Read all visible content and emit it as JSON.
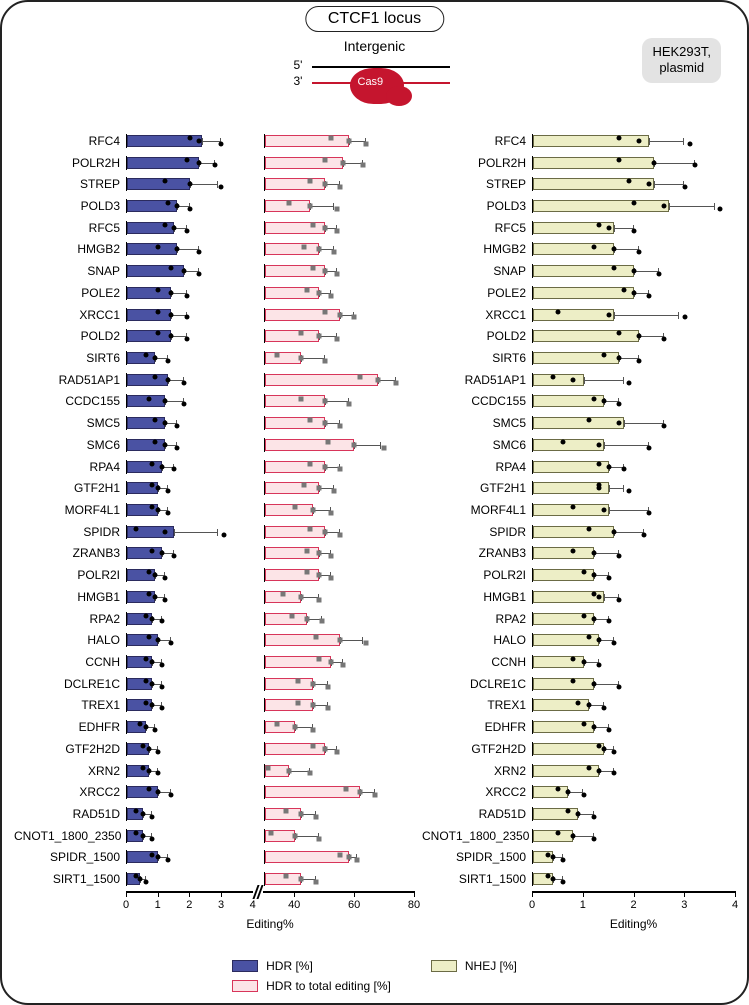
{
  "title": "CTCF1 locus",
  "subtitle": "Intergenic",
  "context": "HEK293T,\nplasmid",
  "cas9": {
    "label5": "5'",
    "label3": "3'",
    "blob": "Cas9"
  },
  "axis": {
    "left_title": "Editing%",
    "right_title": "Editing%",
    "hdr_max": 4,
    "hdr_ticks": [
      0,
      1,
      2,
      3,
      4
    ],
    "ratio_min": 30,
    "ratio_max": 80,
    "ratio_ticks": [
      40,
      60,
      80
    ],
    "nhej_max": 4,
    "nhej_ticks": [
      0,
      1,
      2,
      3,
      4
    ]
  },
  "legend": {
    "hdr": "HDR [%]",
    "ratio": "HDR to total editing [%]",
    "nhej": "NHEJ [%]"
  },
  "colors": {
    "hdr_fill": "#4a52a3",
    "hdr_stroke": "#2b2b5e",
    "ratio_fill": "#fce4e7",
    "ratio_stroke": "#d8355a",
    "nhej_fill": "#edeec6",
    "nhej_stroke": "#6b6b45",
    "cas9": "#c5152e",
    "panel_border": "#222222",
    "badge_bg": "#e3e3e3"
  },
  "genes": [
    {
      "name": "RFC4",
      "hdr": 2.4,
      "hdr_err": 0.6,
      "hdr_pts": [
        2.0,
        2.3,
        3.0
      ],
      "ratio": 58,
      "ratio_err": 6,
      "ratio_pts": [
        52,
        58,
        64
      ],
      "nhej": 2.3,
      "nhej_err": 0.7,
      "nhej_pts": [
        1.7,
        2.1,
        3.1
      ]
    },
    {
      "name": "POLR2H",
      "hdr": 2.3,
      "hdr_err": 0.5,
      "hdr_pts": [
        1.9,
        2.3,
        2.8
      ],
      "ratio": 56,
      "ratio_err": 7,
      "ratio_pts": [
        50,
        56,
        63
      ],
      "nhej": 2.4,
      "nhej_err": 0.8,
      "nhej_pts": [
        1.7,
        2.4,
        3.2
      ]
    },
    {
      "name": "STREP",
      "hdr": 2.0,
      "hdr_err": 0.9,
      "hdr_pts": [
        1.2,
        2.0,
        3.0
      ],
      "ratio": 50,
      "ratio_err": 5,
      "ratio_pts": [
        45,
        50,
        55
      ],
      "nhej": 2.4,
      "nhej_err": 0.6,
      "nhej_pts": [
        1.9,
        2.3,
        3.0
      ]
    },
    {
      "name": "POLD3",
      "hdr": 1.6,
      "hdr_err": 0.4,
      "hdr_pts": [
        1.3,
        1.6,
        2.0
      ],
      "ratio": 45,
      "ratio_err": 8,
      "ratio_pts": [
        38,
        45,
        54
      ],
      "nhej": 2.7,
      "nhej_err": 0.9,
      "nhej_pts": [
        2.0,
        2.6,
        3.7
      ]
    },
    {
      "name": "RFC5",
      "hdr": 1.5,
      "hdr_err": 0.4,
      "hdr_pts": [
        1.2,
        1.5,
        1.9
      ],
      "ratio": 50,
      "ratio_err": 4,
      "ratio_pts": [
        46,
        50,
        54
      ],
      "nhej": 1.6,
      "nhej_err": 0.4,
      "nhej_pts": [
        1.3,
        1.5,
        2.0
      ]
    },
    {
      "name": "HMGB2",
      "hdr": 1.6,
      "hdr_err": 0.7,
      "hdr_pts": [
        1.0,
        1.6,
        2.3
      ],
      "ratio": 48,
      "ratio_err": 5,
      "ratio_pts": [
        43,
        48,
        53
      ],
      "nhej": 1.6,
      "nhej_err": 0.5,
      "nhej_pts": [
        1.2,
        1.6,
        2.1
      ]
    },
    {
      "name": "SNAP",
      "hdr": 1.8,
      "hdr_err": 0.5,
      "hdr_pts": [
        1.4,
        1.8,
        2.3
      ],
      "ratio": 50,
      "ratio_err": 4,
      "ratio_pts": [
        46,
        50,
        54
      ],
      "nhej": 2.0,
      "nhej_err": 0.5,
      "nhej_pts": [
        1.6,
        2.0,
        2.5
      ]
    },
    {
      "name": "POLE2",
      "hdr": 1.4,
      "hdr_err": 0.5,
      "hdr_pts": [
        1.0,
        1.4,
        1.9
      ],
      "ratio": 48,
      "ratio_err": 4,
      "ratio_pts": [
        44,
        48,
        52
      ],
      "nhej": 2.0,
      "nhej_err": 0.3,
      "nhej_pts": [
        1.8,
        2.0,
        2.3
      ]
    },
    {
      "name": "XRCC1",
      "hdr": 1.4,
      "hdr_err": 0.5,
      "hdr_pts": [
        1.0,
        1.4,
        1.9
      ],
      "ratio": 55,
      "ratio_err": 5,
      "ratio_pts": [
        50,
        55,
        60
      ],
      "nhej": 1.6,
      "nhej_err": 1.3,
      "nhej_pts": [
        0.5,
        1.5,
        3.0
      ]
    },
    {
      "name": "POLD2",
      "hdr": 1.4,
      "hdr_err": 0.5,
      "hdr_pts": [
        1.0,
        1.4,
        1.9
      ],
      "ratio": 48,
      "ratio_err": 6,
      "ratio_pts": [
        42,
        48,
        54
      ],
      "nhej": 2.1,
      "nhej_err": 0.5,
      "nhej_pts": [
        1.7,
        2.1,
        2.6
      ]
    },
    {
      "name": "SIRT6",
      "hdr": 0.9,
      "hdr_err": 0.4,
      "hdr_pts": [
        0.6,
        0.9,
        1.3
      ],
      "ratio": 42,
      "ratio_err": 8,
      "ratio_pts": [
        34,
        42,
        50
      ],
      "nhej": 1.7,
      "nhej_err": 0.4,
      "nhej_pts": [
        1.4,
        1.7,
        2.1
      ]
    },
    {
      "name": "RAD51AP1",
      "hdr": 1.3,
      "hdr_err": 0.5,
      "hdr_pts": [
        0.9,
        1.3,
        1.8
      ],
      "ratio": 68,
      "ratio_err": 6,
      "ratio_pts": [
        62,
        68,
        74
      ],
      "nhej": 1.0,
      "nhej_err": 0.8,
      "nhej_pts": [
        0.4,
        0.8,
        1.9
      ]
    },
    {
      "name": "CCDC155",
      "hdr": 1.2,
      "hdr_err": 0.6,
      "hdr_pts": [
        0.7,
        1.2,
        1.8
      ],
      "ratio": 50,
      "ratio_err": 8,
      "ratio_pts": [
        42,
        50,
        58
      ],
      "nhej": 1.4,
      "nhej_err": 0.3,
      "nhej_pts": [
        1.2,
        1.4,
        1.7
      ]
    },
    {
      "name": "SMC5",
      "hdr": 1.2,
      "hdr_err": 0.4,
      "hdr_pts": [
        0.9,
        1.2,
        1.6
      ],
      "ratio": 50,
      "ratio_err": 5,
      "ratio_pts": [
        45,
        50,
        55
      ],
      "nhej": 1.8,
      "nhej_err": 0.8,
      "nhej_pts": [
        1.1,
        1.7,
        2.6
      ]
    },
    {
      "name": "SMC6",
      "hdr": 1.2,
      "hdr_err": 0.4,
      "hdr_pts": [
        0.9,
        1.2,
        1.6
      ],
      "ratio": 60,
      "ratio_err": 9,
      "ratio_pts": [
        51,
        60,
        70
      ],
      "nhej": 1.4,
      "nhej_err": 0.9,
      "nhej_pts": [
        0.6,
        1.3,
        2.3
      ]
    },
    {
      "name": "RPA4",
      "hdr": 1.1,
      "hdr_err": 0.4,
      "hdr_pts": [
        0.8,
        1.1,
        1.5
      ],
      "ratio": 50,
      "ratio_err": 5,
      "ratio_pts": [
        45,
        50,
        55
      ],
      "nhej": 1.5,
      "nhej_err": 0.3,
      "nhej_pts": [
        1.3,
        1.5,
        1.8
      ]
    },
    {
      "name": "GTF2H1",
      "hdr": 1.0,
      "hdr_err": 0.3,
      "hdr_pts": [
        0.8,
        1.0,
        1.3
      ],
      "ratio": 48,
      "ratio_err": 5,
      "ratio_pts": [
        43,
        48,
        53
      ],
      "nhej": 1.5,
      "nhej_err": 0.3,
      "nhej_pts": [
        1.3,
        1.3,
        1.9
      ]
    },
    {
      "name": "MORF4L1",
      "hdr": 1.0,
      "hdr_err": 0.3,
      "hdr_pts": [
        0.8,
        1.0,
        1.3
      ],
      "ratio": 46,
      "ratio_err": 6,
      "ratio_pts": [
        40,
        46,
        52
      ],
      "nhej": 1.5,
      "nhej_err": 0.8,
      "nhej_pts": [
        0.8,
        1.4,
        2.3
      ]
    },
    {
      "name": "SPIDR",
      "hdr": 1.5,
      "hdr_err": 1.4,
      "hdr_pts": [
        0.3,
        1.2,
        3.1
      ],
      "ratio": 50,
      "ratio_err": 5,
      "ratio_pts": [
        45,
        50,
        55
      ],
      "nhej": 1.6,
      "nhej_err": 0.6,
      "nhej_pts": [
        1.1,
        1.6,
        2.2
      ]
    },
    {
      "name": "ZRANB3",
      "hdr": 1.1,
      "hdr_err": 0.4,
      "hdr_pts": [
        0.8,
        1.1,
        1.5
      ],
      "ratio": 48,
      "ratio_err": 4,
      "ratio_pts": [
        44,
        48,
        52
      ],
      "nhej": 1.2,
      "nhej_err": 0.5,
      "nhej_pts": [
        0.8,
        1.2,
        1.7
      ]
    },
    {
      "name": "POLR2I",
      "hdr": 0.9,
      "hdr_err": 0.3,
      "hdr_pts": [
        0.7,
        0.9,
        1.2
      ],
      "ratio": 48,
      "ratio_err": 4,
      "ratio_pts": [
        44,
        48,
        52
      ],
      "nhej": 1.2,
      "nhej_err": 0.3,
      "nhej_pts": [
        1.0,
        1.2,
        1.5
      ]
    },
    {
      "name": "HMGB1",
      "hdr": 0.9,
      "hdr_err": 0.3,
      "hdr_pts": [
        0.7,
        0.9,
        1.2
      ],
      "ratio": 42,
      "ratio_err": 6,
      "ratio_pts": [
        36,
        42,
        48
      ],
      "nhej": 1.4,
      "nhej_err": 0.3,
      "nhej_pts": [
        1.2,
        1.3,
        1.7
      ]
    },
    {
      "name": "RPA2",
      "hdr": 0.8,
      "hdr_err": 0.3,
      "hdr_pts": [
        0.6,
        0.8,
        1.1
      ],
      "ratio": 44,
      "ratio_err": 5,
      "ratio_pts": [
        39,
        44,
        49
      ],
      "nhej": 1.2,
      "nhej_err": 0.3,
      "nhej_pts": [
        1.0,
        1.2,
        1.5
      ]
    },
    {
      "name": "HALO",
      "hdr": 1.0,
      "hdr_err": 0.4,
      "hdr_pts": [
        0.7,
        1.0,
        1.4
      ],
      "ratio": 55,
      "ratio_err": 8,
      "ratio_pts": [
        47,
        55,
        64
      ],
      "nhej": 1.3,
      "nhej_err": 0.3,
      "nhej_pts": [
        1.1,
        1.3,
        1.6
      ]
    },
    {
      "name": "CCNH",
      "hdr": 0.8,
      "hdr_err": 0.3,
      "hdr_pts": [
        0.6,
        0.8,
        1.1
      ],
      "ratio": 52,
      "ratio_err": 4,
      "ratio_pts": [
        48,
        52,
        56
      ],
      "nhej": 1.0,
      "nhej_err": 0.3,
      "nhej_pts": [
        0.8,
        1.0,
        1.3
      ]
    },
    {
      "name": "DCLRE1C",
      "hdr": 0.8,
      "hdr_err": 0.3,
      "hdr_pts": [
        0.6,
        0.8,
        1.1
      ],
      "ratio": 46,
      "ratio_err": 5,
      "ratio_pts": [
        41,
        46,
        51
      ],
      "nhej": 1.2,
      "nhej_err": 0.5,
      "nhej_pts": [
        0.8,
        1.2,
        1.7
      ]
    },
    {
      "name": "TREX1",
      "hdr": 0.8,
      "hdr_err": 0.3,
      "hdr_pts": [
        0.6,
        0.8,
        1.1
      ],
      "ratio": 46,
      "ratio_err": 5,
      "ratio_pts": [
        41,
        46,
        51
      ],
      "nhej": 1.1,
      "nhej_err": 0.3,
      "nhej_pts": [
        0.9,
        1.1,
        1.4
      ]
    },
    {
      "name": "EDHFR",
      "hdr": 0.6,
      "hdr_err": 0.3,
      "hdr_pts": [
        0.4,
        0.6,
        0.9
      ],
      "ratio": 40,
      "ratio_err": 6,
      "ratio_pts": [
        34,
        40,
        46
      ],
      "nhej": 1.2,
      "nhej_err": 0.3,
      "nhej_pts": [
        1.0,
        1.2,
        1.5
      ]
    },
    {
      "name": "GTF2H2D",
      "hdr": 0.7,
      "hdr_err": 0.3,
      "hdr_pts": [
        0.5,
        0.7,
        1.0
      ],
      "ratio": 50,
      "ratio_err": 4,
      "ratio_pts": [
        46,
        50,
        54
      ],
      "nhej": 1.4,
      "nhej_err": 0.2,
      "nhej_pts": [
        1.3,
        1.4,
        1.6
      ]
    },
    {
      "name": "XRN2",
      "hdr": 0.7,
      "hdr_err": 0.3,
      "hdr_pts": [
        0.5,
        0.7,
        1.0
      ],
      "ratio": 38,
      "ratio_err": 7,
      "ratio_pts": [
        31,
        38,
        45
      ],
      "nhej": 1.3,
      "nhej_err": 0.3,
      "nhej_pts": [
        1.1,
        1.3,
        1.6
      ]
    },
    {
      "name": "XRCC2",
      "hdr": 1.0,
      "hdr_err": 0.4,
      "hdr_pts": [
        0.7,
        1.0,
        1.4
      ],
      "ratio": 62,
      "ratio_err": 5,
      "ratio_pts": [
        57,
        62,
        67
      ],
      "nhej": 0.7,
      "nhej_err": 0.3,
      "nhej_pts": [
        0.5,
        0.7,
        1.0
      ]
    },
    {
      "name": "RAD51D",
      "hdr": 0.5,
      "hdr_err": 0.3,
      "hdr_pts": [
        0.3,
        0.5,
        0.8
      ],
      "ratio": 42,
      "ratio_err": 5,
      "ratio_pts": [
        37,
        42,
        47
      ],
      "nhej": 0.9,
      "nhej_err": 0.3,
      "nhej_pts": [
        0.7,
        0.9,
        1.2
      ]
    },
    {
      "name": "CNOT1_1800_2350",
      "hdr": 0.5,
      "hdr_err": 0.3,
      "hdr_pts": [
        0.3,
        0.5,
        0.8
      ],
      "ratio": 40,
      "ratio_err": 8,
      "ratio_pts": [
        32,
        40,
        48
      ],
      "nhej": 0.8,
      "nhej_err": 0.4,
      "nhej_pts": [
        0.5,
        0.8,
        1.2
      ]
    },
    {
      "name": "SPIDR_1500",
      "hdr": 1.0,
      "hdr_err": 0.3,
      "hdr_pts": [
        0.8,
        1.0,
        1.3
      ],
      "ratio": 58,
      "ratio_err": 3,
      "ratio_pts": [
        55,
        58,
        61
      ],
      "nhej": 0.4,
      "nhej_err": 0.2,
      "nhej_pts": [
        0.3,
        0.4,
        0.6
      ]
    },
    {
      "name": "SIRT1_1500",
      "hdr": 0.4,
      "hdr_err": 0.2,
      "hdr_pts": [
        0.3,
        0.4,
        0.6
      ],
      "ratio": 42,
      "ratio_err": 5,
      "ratio_pts": [
        37,
        42,
        47
      ],
      "nhej": 0.4,
      "nhej_err": 0.2,
      "nhej_pts": [
        0.3,
        0.4,
        0.6
      ]
    }
  ]
}
